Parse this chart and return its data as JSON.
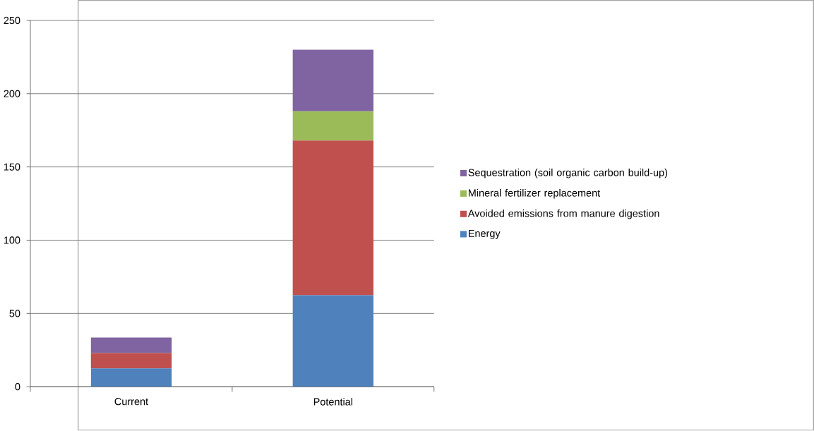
{
  "chart_data": {
    "type": "bar",
    "stacked": true,
    "categories": [
      "Current",
      "Potential"
    ],
    "series": [
      {
        "name": "Energy",
        "color": "#4f81bd",
        "values": [
          12.5,
          62.5
        ]
      },
      {
        "name": "Avoided emissions from manure digestion",
        "color": "#c0504d",
        "values": [
          10.5,
          105.5
        ]
      },
      {
        "name": "Mineral fertilizer replacement",
        "color": "#9bbb59",
        "values": [
          0,
          20
        ]
      },
      {
        "name": "Sequestration (soil organic carbon build-up)",
        "color": "#8064a2",
        "values": [
          10.5,
          42
        ]
      }
    ],
    "ylim": [
      0,
      250
    ],
    "yticks": [
      0,
      50,
      100,
      150,
      200,
      250
    ],
    "grid": "y",
    "legend": "right"
  }
}
